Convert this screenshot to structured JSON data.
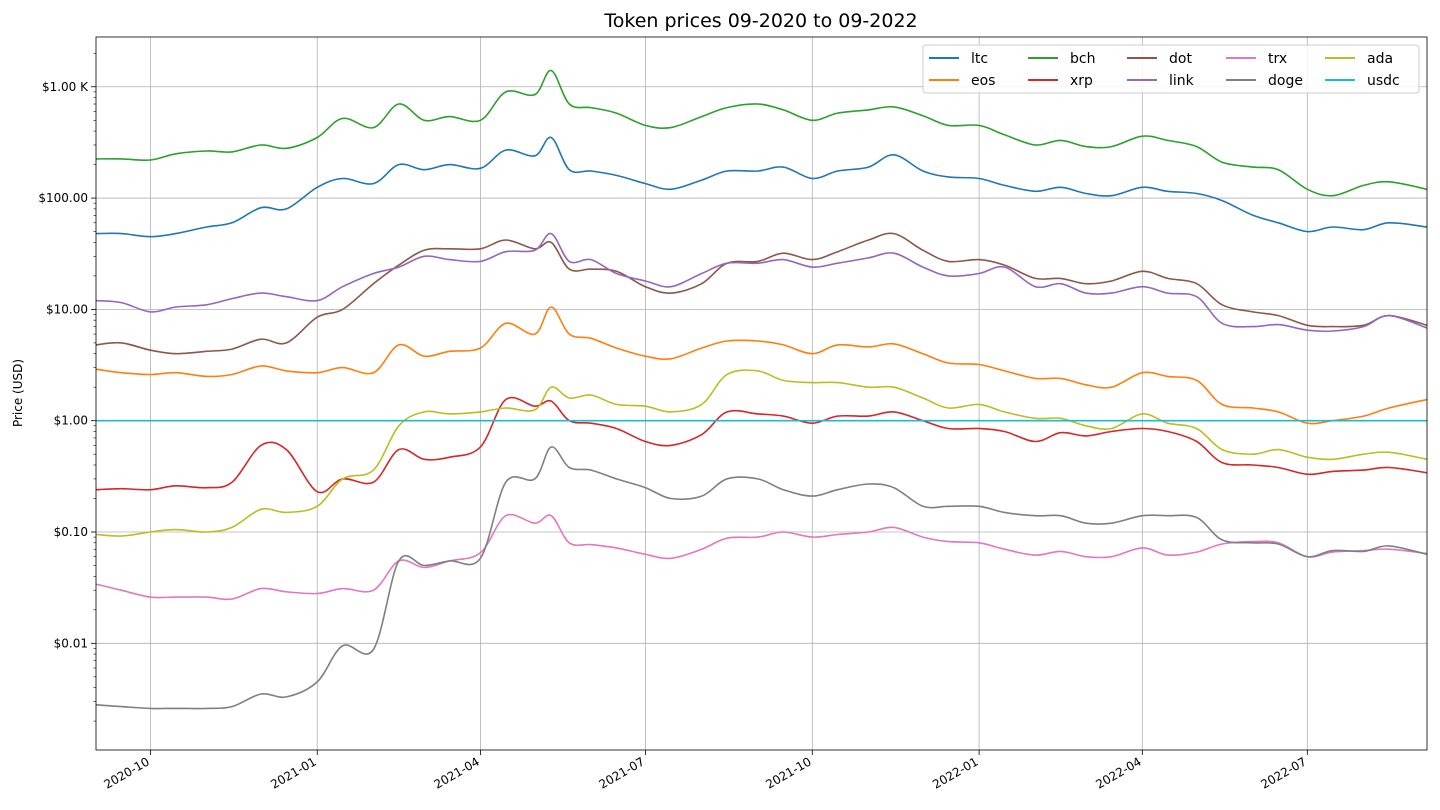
{
  "chart_data": {
    "type": "line",
    "title": "Token prices 09-2020 to 09-2022",
    "xlabel": "",
    "ylabel": "Price (USD)",
    "yscale": "log",
    "xlim": [
      "2020-09-01",
      "2022-09-05"
    ],
    "ylim": [
      0.0011,
      2800
    ],
    "grid": true,
    "legend_position": "top-right",
    "x_ticks": [
      {
        "date": "2020-10-01",
        "label": "2020-10"
      },
      {
        "date": "2021-01-01",
        "label": "2021-01"
      },
      {
        "date": "2021-04-01",
        "label": "2021-04"
      },
      {
        "date": "2021-07-01",
        "label": "2021-07"
      },
      {
        "date": "2021-10-01",
        "label": "2021-10"
      },
      {
        "date": "2022-01-01",
        "label": "2022-01"
      },
      {
        "date": "2022-04-01",
        "label": "2022-04"
      },
      {
        "date": "2022-07-01",
        "label": "2022-07"
      }
    ],
    "y_ticks": [
      {
        "value": 0.01,
        "label": "$0.01"
      },
      {
        "value": 0.1,
        "label": "$0.10"
      },
      {
        "value": 1,
        "label": "$1.00"
      },
      {
        "value": 10,
        "label": "$10.00"
      },
      {
        "value": 100,
        "label": "$100.00"
      },
      {
        "value": 1000,
        "label": "$1.00 K"
      }
    ],
    "x": [
      "2020-09-01",
      "2020-09-15",
      "2020-10-01",
      "2020-10-15",
      "2020-11-01",
      "2020-11-15",
      "2020-12-01",
      "2020-12-15",
      "2021-01-01",
      "2021-01-15",
      "2021-02-01",
      "2021-02-15",
      "2021-03-01",
      "2021-03-15",
      "2021-04-01",
      "2021-04-15",
      "2021-05-01",
      "2021-05-10",
      "2021-05-20",
      "2021-06-01",
      "2021-06-15",
      "2021-07-01",
      "2021-07-15",
      "2021-08-01",
      "2021-08-15",
      "2021-09-01",
      "2021-09-15",
      "2021-10-01",
      "2021-10-15",
      "2021-11-01",
      "2021-11-15",
      "2021-12-01",
      "2021-12-15",
      "2022-01-01",
      "2022-01-15",
      "2022-02-01",
      "2022-02-15",
      "2022-03-01",
      "2022-03-15",
      "2022-04-01",
      "2022-04-15",
      "2022-05-01",
      "2022-05-15",
      "2022-06-01",
      "2022-06-15",
      "2022-07-01",
      "2022-07-15",
      "2022-08-01",
      "2022-08-15",
      "2022-09-05"
    ],
    "series": [
      {
        "name": "ltc",
        "color": "#1f77b4",
        "values": [
          48,
          48,
          45,
          48,
          55,
          60,
          82,
          80,
          125,
          150,
          135,
          200,
          180,
          200,
          185,
          270,
          240,
          350,
          180,
          175,
          160,
          135,
          120,
          145,
          175,
          175,
          190,
          150,
          175,
          190,
          245,
          175,
          155,
          150,
          130,
          115,
          125,
          110,
          105,
          125,
          115,
          110,
          95,
          70,
          60,
          50,
          55,
          52,
          60,
          55
        ]
      },
      {
        "name": "eos",
        "color": "#ff7f0e",
        "values": [
          2.9,
          2.7,
          2.6,
          2.7,
          2.5,
          2.6,
          3.1,
          2.8,
          2.7,
          3.0,
          2.7,
          4.8,
          3.8,
          4.2,
          4.5,
          7.5,
          6.0,
          10.5,
          6.0,
          5.5,
          4.5,
          3.8,
          3.6,
          4.5,
          5.2,
          5.2,
          4.8,
          4.0,
          4.8,
          4.6,
          4.9,
          4.0,
          3.3,
          3.2,
          2.8,
          2.4,
          2.4,
          2.1,
          2.0,
          2.7,
          2.5,
          2.3,
          1.4,
          1.3,
          1.2,
          0.95,
          1.0,
          1.1,
          1.3,
          1.55
        ]
      },
      {
        "name": "bch",
        "color": "#2ca02c",
        "values": [
          225,
          225,
          220,
          250,
          265,
          260,
          300,
          280,
          350,
          520,
          430,
          700,
          500,
          540,
          500,
          900,
          850,
          1400,
          700,
          650,
          580,
          450,
          430,
          540,
          650,
          700,
          620,
          500,
          580,
          620,
          660,
          550,
          450,
          450,
          370,
          300,
          330,
          290,
          290,
          360,
          330,
          290,
          210,
          190,
          180,
          120,
          105,
          130,
          140,
          120
        ]
      },
      {
        "name": "xrp",
        "color": "#d62728",
        "values": [
          0.24,
          0.245,
          0.24,
          0.26,
          0.25,
          0.28,
          0.6,
          0.55,
          0.23,
          0.3,
          0.28,
          0.55,
          0.45,
          0.47,
          0.58,
          1.55,
          1.35,
          1.5,
          1.0,
          0.95,
          0.85,
          0.65,
          0.6,
          0.75,
          1.2,
          1.15,
          1.1,
          0.95,
          1.1,
          1.1,
          1.2,
          1.0,
          0.85,
          0.85,
          0.8,
          0.65,
          0.78,
          0.73,
          0.8,
          0.85,
          0.8,
          0.65,
          0.42,
          0.4,
          0.38,
          0.33,
          0.35,
          0.36,
          0.38,
          0.34
        ]
      },
      {
        "name": "dot",
        "color": "#8c564b",
        "values": [
          4.8,
          5.0,
          4.3,
          4.0,
          4.2,
          4.4,
          5.4,
          5.0,
          8.5,
          10.0,
          17.0,
          25.0,
          34.0,
          35.0,
          35.0,
          42.0,
          35.0,
          40.0,
          23.0,
          23.0,
          22.0,
          16.0,
          14.0,
          17.0,
          26.0,
          27.0,
          32.0,
          28.0,
          33.0,
          42.0,
          48.0,
          34.0,
          27.0,
          28.0,
          25.0,
          19.0,
          19.0,
          17.0,
          18.0,
          22.0,
          19.0,
          17.0,
          11.0,
          9.5,
          8.8,
          7.2,
          7.0,
          7.2,
          8.8,
          7.2
        ]
      },
      {
        "name": "link",
        "color": "#9467bd",
        "values": [
          12.0,
          11.5,
          9.5,
          10.5,
          11.0,
          12.5,
          14.0,
          13.0,
          12.0,
          16.0,
          21.0,
          24.0,
          30.0,
          28.0,
          27.0,
          33.0,
          34.0,
          48.0,
          27.0,
          28.0,
          21.0,
          18.0,
          16.0,
          21.0,
          26.0,
          26.0,
          28.0,
          24.0,
          26.0,
          29.0,
          32.0,
          24.0,
          20.0,
          21.0,
          24.0,
          16.0,
          17.0,
          14.0,
          14.0,
          16.0,
          14.0,
          13.0,
          7.5,
          7.0,
          7.3,
          6.5,
          6.4,
          7.0,
          8.8,
          6.8
        ]
      },
      {
        "name": "trx",
        "color": "#e377c2",
        "values": [
          0.034,
          0.03,
          0.026,
          0.026,
          0.026,
          0.025,
          0.031,
          0.029,
          0.028,
          0.031,
          0.03,
          0.055,
          0.048,
          0.055,
          0.065,
          0.14,
          0.12,
          0.14,
          0.08,
          0.077,
          0.072,
          0.063,
          0.058,
          0.07,
          0.088,
          0.09,
          0.1,
          0.09,
          0.095,
          0.1,
          0.11,
          0.09,
          0.082,
          0.08,
          0.07,
          0.062,
          0.067,
          0.06,
          0.06,
          0.072,
          0.062,
          0.066,
          0.078,
          0.082,
          0.08,
          0.06,
          0.066,
          0.068,
          0.07,
          0.064
        ]
      },
      {
        "name": "doge",
        "color": "#7f7f7f",
        "values": [
          0.0028,
          0.0027,
          0.0026,
          0.0026,
          0.0026,
          0.0027,
          0.0035,
          0.0033,
          0.0045,
          0.0095,
          0.0088,
          0.055,
          0.05,
          0.055,
          0.058,
          0.28,
          0.3,
          0.58,
          0.38,
          0.36,
          0.3,
          0.25,
          0.2,
          0.21,
          0.3,
          0.3,
          0.24,
          0.21,
          0.24,
          0.27,
          0.25,
          0.17,
          0.17,
          0.17,
          0.15,
          0.14,
          0.14,
          0.12,
          0.12,
          0.14,
          0.14,
          0.135,
          0.085,
          0.08,
          0.078,
          0.06,
          0.068,
          0.067,
          0.075,
          0.063
        ]
      },
      {
        "name": "ada",
        "color": "#bcbd22",
        "values": [
          0.095,
          0.092,
          0.1,
          0.105,
          0.1,
          0.11,
          0.16,
          0.15,
          0.17,
          0.3,
          0.36,
          0.9,
          1.2,
          1.15,
          1.2,
          1.3,
          1.25,
          2.0,
          1.6,
          1.7,
          1.4,
          1.35,
          1.2,
          1.4,
          2.6,
          2.8,
          2.3,
          2.2,
          2.2,
          2.0,
          2.0,
          1.6,
          1.3,
          1.4,
          1.2,
          1.05,
          1.05,
          0.9,
          0.85,
          1.15,
          0.95,
          0.85,
          0.55,
          0.5,
          0.55,
          0.47,
          0.45,
          0.5,
          0.52,
          0.45
        ]
      },
      {
        "name": "usdc",
        "color": "#17becf",
        "values": [
          1,
          1,
          1,
          1,
          1,
          1,
          1,
          1,
          1,
          1,
          1,
          1,
          1,
          1,
          1,
          1,
          1,
          1,
          1,
          1,
          1,
          1,
          1,
          1,
          1,
          1,
          1,
          1,
          1,
          1,
          1,
          1,
          1,
          1,
          1,
          1,
          1,
          1,
          1,
          1,
          1,
          1,
          1,
          1,
          1,
          1,
          1,
          1,
          1,
          1
        ]
      }
    ]
  }
}
